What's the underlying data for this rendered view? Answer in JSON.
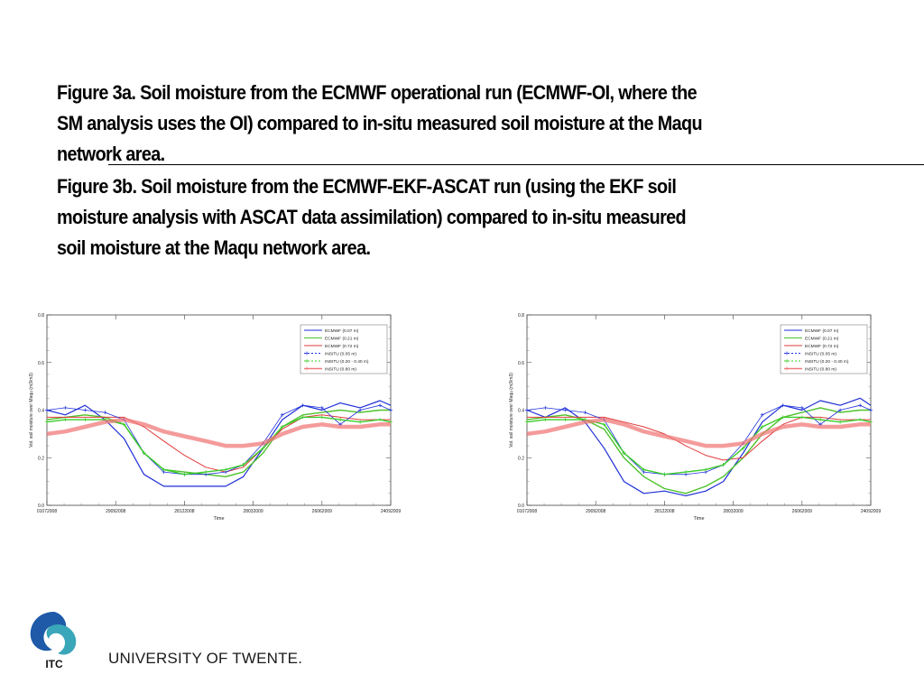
{
  "caption": {
    "fig3a_lines": [
      "Figure 3a. Soil moisture from the ECMWF operational run (ECMWF-OI, where the",
      "SM analysis uses the OI) compared to in-situ measured soil moisture at the Maqu",
      "network area."
    ],
    "fig3b_lines": [
      "Figure 3b. Soil moisture from the ECMWF-EKF-ASCAT run (using the EKF soil",
      "moisture analysis with ASCAT data assimilation) compared to in-situ measured",
      "soil moisture at the Maqu network area."
    ]
  },
  "footer": {
    "university": "UNIVERSITY OF TWENTE.",
    "logo_text": "ITC"
  },
  "colors": {
    "ecmwf_007": "#1f2fd6",
    "ecmwf_021": "#4cc22a",
    "ecmwf_072": "#e03a3a",
    "insitu_005": "#2233dd",
    "insitu_020_040": "#3ccc2a",
    "insitu_080": "#f07a7a",
    "logo_blue": "#1e5aa8",
    "logo_teal": "#3aa6b9"
  },
  "chart_data": [
    {
      "type": "line",
      "xlabel": "Time",
      "ylabel": "Vol. soil moisture over Maqu (m3/m3)",
      "ylim": [
        0.0,
        0.8
      ],
      "yticks": [
        "0.0",
        "0.2",
        "0.4",
        "0.6",
        "0.8"
      ],
      "x_tick_labels": [
        "01072008",
        "29092008",
        "28122008",
        "28032009",
        "26062009",
        "24092009"
      ],
      "x": [
        "2008-07-01",
        "2008-07-25",
        "2008-08-20",
        "2008-09-15",
        "2008-10-10",
        "2008-11-05",
        "2008-12-01",
        "2008-12-28",
        "2009-01-25",
        "2009-02-20",
        "2009-03-15",
        "2009-04-10",
        "2009-05-05",
        "2009-06-01",
        "2009-06-26",
        "2009-07-20",
        "2009-08-15",
        "2009-09-10",
        "2009-09-24"
      ],
      "legend_position": "top-right",
      "legend": [
        "ECMWF (0.07 m)",
        "ECMWF (0.21 m)",
        "ECMWF (0.72 m)",
        "INSITU (0.05 m)",
        "INSITU (0.20 - 0.40 m)",
        "INSITU (0.80 m)"
      ],
      "series": [
        {
          "name": "ECMWF (0.07 m)",
          "values": [
            0.4,
            0.38,
            0.42,
            0.36,
            0.28,
            0.13,
            0.08,
            0.08,
            0.08,
            0.08,
            0.12,
            0.24,
            0.36,
            0.42,
            0.4,
            0.43,
            0.41,
            0.44,
            0.42
          ]
        },
        {
          "name": "ECMWF (0.21 m)",
          "values": [
            0.36,
            0.37,
            0.38,
            0.37,
            0.34,
            0.22,
            0.15,
            0.14,
            0.13,
            0.12,
            0.14,
            0.22,
            0.33,
            0.38,
            0.39,
            0.4,
            0.39,
            0.4,
            0.4
          ]
        },
        {
          "name": "ECMWF (0.72 m)",
          "values": [
            0.37,
            0.37,
            0.37,
            0.37,
            0.37,
            0.33,
            0.27,
            0.21,
            0.16,
            0.14,
            0.16,
            0.24,
            0.32,
            0.37,
            0.38,
            0.37,
            0.36,
            0.36,
            0.36
          ]
        },
        {
          "name": "INSITU (0.05 m)",
          "values": [
            0.4,
            0.41,
            0.4,
            0.39,
            0.36,
            0.22,
            0.14,
            0.13,
            0.13,
            0.14,
            0.17,
            0.26,
            0.38,
            0.42,
            0.41,
            0.34,
            0.4,
            0.42,
            0.4
          ]
        },
        {
          "name": "INSITU (0.20 - 0.40 m)",
          "values": [
            0.35,
            0.36,
            0.36,
            0.36,
            0.34,
            0.22,
            0.15,
            0.13,
            0.14,
            0.15,
            0.17,
            0.24,
            0.33,
            0.37,
            0.37,
            0.36,
            0.35,
            0.36,
            0.35
          ]
        },
        {
          "name": "INSITU (0.80 m)",
          "values": [
            0.3,
            0.31,
            0.33,
            0.35,
            0.36,
            0.34,
            0.31,
            0.29,
            0.27,
            0.25,
            0.25,
            0.26,
            0.3,
            0.33,
            0.34,
            0.33,
            0.33,
            0.34,
            0.34
          ]
        }
      ]
    },
    {
      "type": "line",
      "xlabel": "Time",
      "ylabel": "Vol. soil moisture over Maqu (m3/m3)",
      "ylim": [
        0.0,
        0.8
      ],
      "yticks": [
        "0.0",
        "0.2",
        "0.4",
        "0.6",
        "0.8"
      ],
      "x_tick_labels": [
        "01072008",
        "29092008",
        "28122008",
        "28032009",
        "26062009",
        "24092009"
      ],
      "x": [
        "2008-07-01",
        "2008-07-25",
        "2008-08-20",
        "2008-09-15",
        "2008-10-10",
        "2008-11-05",
        "2008-12-01",
        "2008-12-28",
        "2009-01-25",
        "2009-02-20",
        "2009-03-15",
        "2009-04-10",
        "2009-05-05",
        "2009-06-01",
        "2009-06-26",
        "2009-07-20",
        "2009-08-15",
        "2009-09-10",
        "2009-09-24"
      ],
      "legend_position": "top-right",
      "legend": [
        "ECMWF (0.07 m)",
        "ECMWF (0.21 m)",
        "ECMWF (0.72 m)",
        "INSITU (0.05 m)",
        "INSITU (0.20 - 0.40 m)",
        "INSITU (0.80 m)"
      ],
      "series": [
        {
          "name": "ECMWF (0.07 m)",
          "values": [
            0.4,
            0.37,
            0.41,
            0.35,
            0.24,
            0.1,
            0.05,
            0.06,
            0.04,
            0.06,
            0.1,
            0.22,
            0.35,
            0.42,
            0.4,
            0.44,
            0.42,
            0.45,
            0.42
          ]
        },
        {
          "name": "ECMWF (0.21 m)",
          "values": [
            0.36,
            0.37,
            0.38,
            0.36,
            0.32,
            0.2,
            0.12,
            0.07,
            0.05,
            0.08,
            0.12,
            0.2,
            0.3,
            0.37,
            0.39,
            0.41,
            0.39,
            0.4,
            0.4
          ]
        },
        {
          "name": "ECMWF (0.72 m)",
          "values": [
            0.37,
            0.37,
            0.37,
            0.37,
            0.37,
            0.35,
            0.33,
            0.3,
            0.25,
            0.21,
            0.19,
            0.2,
            0.27,
            0.34,
            0.37,
            0.37,
            0.36,
            0.36,
            0.36
          ]
        },
        {
          "name": "INSITU (0.05 m)",
          "values": [
            0.4,
            0.41,
            0.4,
            0.39,
            0.36,
            0.22,
            0.14,
            0.13,
            0.13,
            0.14,
            0.17,
            0.26,
            0.38,
            0.42,
            0.41,
            0.34,
            0.4,
            0.42,
            0.4
          ]
        },
        {
          "name": "INSITU (0.20 - 0.40 m)",
          "values": [
            0.35,
            0.36,
            0.36,
            0.36,
            0.34,
            0.22,
            0.15,
            0.13,
            0.14,
            0.15,
            0.17,
            0.24,
            0.33,
            0.37,
            0.37,
            0.36,
            0.35,
            0.36,
            0.35
          ]
        },
        {
          "name": "INSITU (0.80 m)",
          "values": [
            0.3,
            0.31,
            0.33,
            0.35,
            0.36,
            0.34,
            0.31,
            0.29,
            0.27,
            0.25,
            0.25,
            0.26,
            0.3,
            0.33,
            0.34,
            0.33,
            0.33,
            0.34,
            0.34
          ]
        }
      ]
    }
  ]
}
